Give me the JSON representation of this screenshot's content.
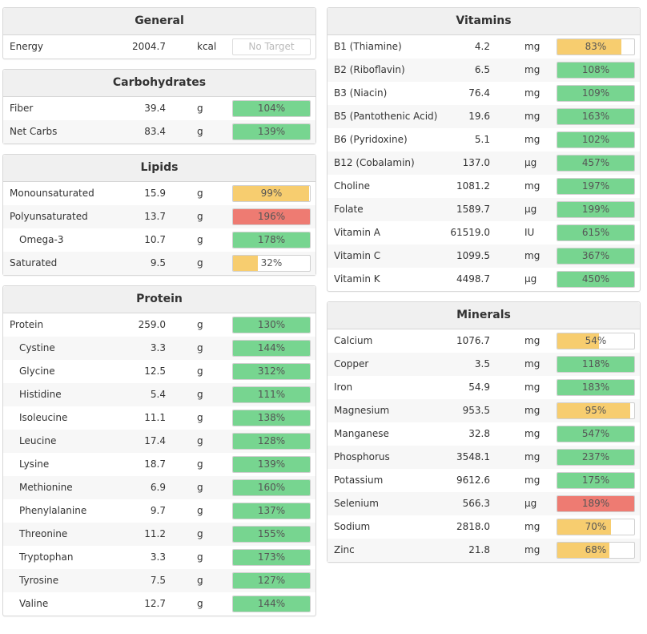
{
  "colors": {
    "green": "#77d590",
    "yellow": "#f7cd6f",
    "red": "#ee7b72"
  },
  "general": {
    "title": "General",
    "rows": [
      {
        "name": "Energy",
        "amount": "2004.7",
        "unit": "kcal",
        "pct_label": "No Target",
        "fraction": null,
        "status": "none"
      }
    ]
  },
  "carbohydrates": {
    "title": "Carbohydrates",
    "rows": [
      {
        "name": "Fiber",
        "amount": "39.4",
        "unit": "g",
        "pct_label": "104%",
        "fraction": 1.0,
        "status": "green"
      },
      {
        "name": "Net Carbs",
        "amount": "83.4",
        "unit": "g",
        "pct_label": "139%",
        "fraction": 1.0,
        "status": "green"
      }
    ]
  },
  "lipids": {
    "title": "Lipids",
    "rows": [
      {
        "name": "Monounsaturated",
        "amount": "15.9",
        "unit": "g",
        "pct_label": "99%",
        "fraction": 0.99,
        "status": "yellow"
      },
      {
        "name": "Polyunsaturated",
        "amount": "13.7",
        "unit": "g",
        "pct_label": "196%",
        "fraction": 1.0,
        "status": "red"
      },
      {
        "name": "Omega-3",
        "amount": "10.7",
        "unit": "g",
        "pct_label": "178%",
        "fraction": 1.0,
        "status": "green",
        "sub": true
      },
      {
        "name": "Saturated",
        "amount": "9.5",
        "unit": "g",
        "pct_label": "32%",
        "fraction": 0.32,
        "status": "yellow"
      }
    ]
  },
  "protein": {
    "title": "Protein",
    "rows": [
      {
        "name": "Protein",
        "amount": "259.0",
        "unit": "g",
        "pct_label": "130%",
        "fraction": 1.0,
        "status": "green"
      },
      {
        "name": "Cystine",
        "amount": "3.3",
        "unit": "g",
        "pct_label": "144%",
        "fraction": 1.0,
        "status": "green",
        "sub": true
      },
      {
        "name": "Glycine",
        "amount": "12.5",
        "unit": "g",
        "pct_label": "312%",
        "fraction": 1.0,
        "status": "green",
        "sub": true
      },
      {
        "name": "Histidine",
        "amount": "5.4",
        "unit": "g",
        "pct_label": "111%",
        "fraction": 1.0,
        "status": "green",
        "sub": true
      },
      {
        "name": "Isoleucine",
        "amount": "11.1",
        "unit": "g",
        "pct_label": "138%",
        "fraction": 1.0,
        "status": "green",
        "sub": true
      },
      {
        "name": "Leucine",
        "amount": "17.4",
        "unit": "g",
        "pct_label": "128%",
        "fraction": 1.0,
        "status": "green",
        "sub": true
      },
      {
        "name": "Lysine",
        "amount": "18.7",
        "unit": "g",
        "pct_label": "139%",
        "fraction": 1.0,
        "status": "green",
        "sub": true
      },
      {
        "name": "Methionine",
        "amount": "6.9",
        "unit": "g",
        "pct_label": "160%",
        "fraction": 1.0,
        "status": "green",
        "sub": true
      },
      {
        "name": "Phenylalanine",
        "amount": "9.7",
        "unit": "g",
        "pct_label": "137%",
        "fraction": 1.0,
        "status": "green",
        "sub": true
      },
      {
        "name": "Threonine",
        "amount": "11.2",
        "unit": "g",
        "pct_label": "155%",
        "fraction": 1.0,
        "status": "green",
        "sub": true
      },
      {
        "name": "Tryptophan",
        "amount": "3.3",
        "unit": "g",
        "pct_label": "173%",
        "fraction": 1.0,
        "status": "green",
        "sub": true
      },
      {
        "name": "Tyrosine",
        "amount": "7.5",
        "unit": "g",
        "pct_label": "127%",
        "fraction": 1.0,
        "status": "green",
        "sub": true
      },
      {
        "name": "Valine",
        "amount": "12.7",
        "unit": "g",
        "pct_label": "144%",
        "fraction": 1.0,
        "status": "green",
        "sub": true
      }
    ]
  },
  "vitamins": {
    "title": "Vitamins",
    "rows": [
      {
        "name": "B1 (Thiamine)",
        "amount": "4.2",
        "unit": "mg",
        "pct_label": "83%",
        "fraction": 0.83,
        "status": "yellow"
      },
      {
        "name": "B2 (Riboflavin)",
        "amount": "6.5",
        "unit": "mg",
        "pct_label": "108%",
        "fraction": 1.0,
        "status": "green"
      },
      {
        "name": "B3 (Niacin)",
        "amount": "76.4",
        "unit": "mg",
        "pct_label": "109%",
        "fraction": 1.0,
        "status": "green"
      },
      {
        "name": "B5 (Pantothenic Acid)",
        "amount": "19.6",
        "unit": "mg",
        "pct_label": "163%",
        "fraction": 1.0,
        "status": "green"
      },
      {
        "name": "B6 (Pyridoxine)",
        "amount": "5.1",
        "unit": "mg",
        "pct_label": "102%",
        "fraction": 1.0,
        "status": "green"
      },
      {
        "name": "B12 (Cobalamin)",
        "amount": "137.0",
        "unit": "µg",
        "pct_label": "457%",
        "fraction": 1.0,
        "status": "green"
      },
      {
        "name": "Choline",
        "amount": "1081.2",
        "unit": "mg",
        "pct_label": "197%",
        "fraction": 1.0,
        "status": "green"
      },
      {
        "name": "Folate",
        "amount": "1589.7",
        "unit": "µg",
        "pct_label": "199%",
        "fraction": 1.0,
        "status": "green"
      },
      {
        "name": "Vitamin A",
        "amount": "61519.0",
        "unit": "IU",
        "pct_label": "615%",
        "fraction": 1.0,
        "status": "green"
      },
      {
        "name": "Vitamin C",
        "amount": "1099.5",
        "unit": "mg",
        "pct_label": "367%",
        "fraction": 1.0,
        "status": "green"
      },
      {
        "name": "Vitamin K",
        "amount": "4498.7",
        "unit": "µg",
        "pct_label": "450%",
        "fraction": 1.0,
        "status": "green"
      }
    ]
  },
  "minerals": {
    "title": "Minerals",
    "rows": [
      {
        "name": "Calcium",
        "amount": "1076.7",
        "unit": "mg",
        "pct_label": "54%",
        "fraction": 0.54,
        "status": "yellow"
      },
      {
        "name": "Copper",
        "amount": "3.5",
        "unit": "mg",
        "pct_label": "118%",
        "fraction": 1.0,
        "status": "green"
      },
      {
        "name": "Iron",
        "amount": "54.9",
        "unit": "mg",
        "pct_label": "183%",
        "fraction": 1.0,
        "status": "green"
      },
      {
        "name": "Magnesium",
        "amount": "953.5",
        "unit": "mg",
        "pct_label": "95%",
        "fraction": 0.95,
        "status": "yellow"
      },
      {
        "name": "Manganese",
        "amount": "32.8",
        "unit": "mg",
        "pct_label": "547%",
        "fraction": 1.0,
        "status": "green"
      },
      {
        "name": "Phosphorus",
        "amount": "3548.1",
        "unit": "mg",
        "pct_label": "237%",
        "fraction": 1.0,
        "status": "green"
      },
      {
        "name": "Potassium",
        "amount": "9612.6",
        "unit": "mg",
        "pct_label": "175%",
        "fraction": 1.0,
        "status": "green"
      },
      {
        "name": "Selenium",
        "amount": "566.3",
        "unit": "µg",
        "pct_label": "189%",
        "fraction": 1.0,
        "status": "red"
      },
      {
        "name": "Sodium",
        "amount": "2818.0",
        "unit": "mg",
        "pct_label": "70%",
        "fraction": 0.7,
        "status": "yellow"
      },
      {
        "name": "Zinc",
        "amount": "21.8",
        "unit": "mg",
        "pct_label": "68%",
        "fraction": 0.68,
        "status": "yellow"
      }
    ]
  }
}
